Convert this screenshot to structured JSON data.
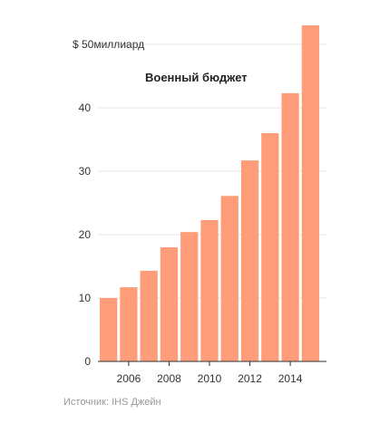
{
  "chart_data": {
    "type": "bar",
    "title": "Военный бюджет",
    "x": [
      2005,
      2006,
      2007,
      2008,
      2009,
      2010,
      2011,
      2012,
      2013,
      2014,
      2015
    ],
    "values": [
      10,
      11.7,
      14.3,
      18,
      20.4,
      22.3,
      26.1,
      31.7,
      36,
      42.3,
      53
    ],
    "ylim": [
      0,
      53
    ],
    "y_ticks": [
      0,
      10,
      20,
      30,
      40
    ],
    "y_ticks_labels": [
      "0",
      "10",
      "20",
      "30",
      "40"
    ],
    "y_top_label": "$ 50миллиард",
    "x_tick_labels": [
      "2006",
      "2008",
      "2010",
      "2012",
      "2014"
    ],
    "x_tick_years": [
      2006,
      2008,
      2010,
      2012,
      2014
    ],
    "grid": true,
    "bar_color": "#ff9d7a",
    "source": "Источник: IHS Джейн"
  }
}
